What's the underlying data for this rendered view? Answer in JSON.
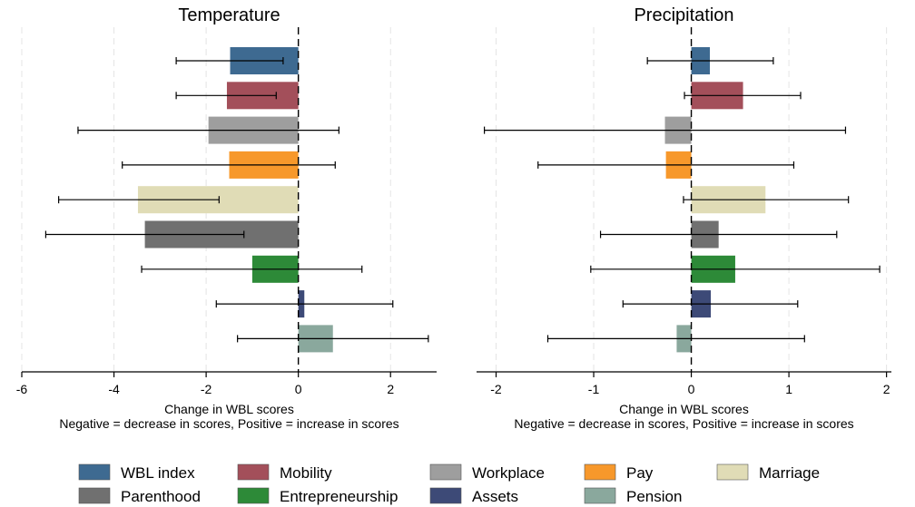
{
  "chart_data": [
    {
      "type": "bar",
      "orientation": "horizontal",
      "title": "Temperature",
      "xlabel": "Change in WBL scores",
      "xlabel_note": "Negative = decrease in scores, Positive = increase in scores",
      "xlim": [
        -6,
        3
      ],
      "xticks": [
        -6,
        -4,
        -2,
        0,
        2
      ],
      "xtick_labels": [
        "-6",
        "-4",
        "-2",
        "0",
        "2"
      ],
      "grid": "vertical dashed",
      "bars": [
        {
          "series": "WBL index",
          "value": -1.48,
          "ci": [
            -2.65,
            -0.33
          ]
        },
        {
          "series": "Mobility",
          "value": -1.55,
          "ci": [
            -2.65,
            -0.48
          ]
        },
        {
          "series": "Workplace",
          "value": -1.95,
          "ci": [
            -4.78,
            0.88
          ]
        },
        {
          "series": "Pay",
          "value": -1.5,
          "ci": [
            -3.82,
            0.8
          ]
        },
        {
          "series": "Marriage",
          "value": -3.48,
          "ci": [
            -5.2,
            -1.72
          ]
        },
        {
          "series": "Parenthood",
          "value": -3.33,
          "ci": [
            -5.48,
            -1.18
          ]
        },
        {
          "series": "Entrepreneurship",
          "value": -1.0,
          "ci": [
            -3.4,
            1.38
          ]
        },
        {
          "series": "Assets",
          "value": 0.13,
          "ci": [
            -1.78,
            2.05
          ]
        },
        {
          "series": "Pension",
          "value": 0.75,
          "ci": [
            -1.32,
            2.82
          ]
        }
      ]
    },
    {
      "type": "bar",
      "orientation": "horizontal",
      "title": "Precipitation",
      "xlabel": "Change in WBL scores",
      "xlabel_note": "Negative = decrease in scores, Positive = increase in scores",
      "xlim": [
        -2.2,
        2.05
      ],
      "xticks": [
        -2,
        -1,
        0,
        1,
        2
      ],
      "xtick_labels": [
        "-2",
        "-1",
        "0",
        "1",
        "2"
      ],
      "grid": "vertical dashed",
      "bars": [
        {
          "series": "WBL index",
          "value": 0.19,
          "ci": [
            -0.45,
            0.84
          ]
        },
        {
          "series": "Mobility",
          "value": 0.53,
          "ci": [
            -0.07,
            1.12
          ]
        },
        {
          "series": "Workplace",
          "value": -0.27,
          "ci": [
            -2.12,
            1.58
          ]
        },
        {
          "series": "Pay",
          "value": -0.26,
          "ci": [
            -1.57,
            1.05
          ]
        },
        {
          "series": "Marriage",
          "value": 0.76,
          "ci": [
            -0.08,
            1.61
          ]
        },
        {
          "series": "Parenthood",
          "value": 0.28,
          "ci": [
            -0.93,
            1.49
          ]
        },
        {
          "series": "Entrepreneurship",
          "value": 0.45,
          "ci": [
            -1.03,
            1.93
          ]
        },
        {
          "series": "Assets",
          "value": 0.2,
          "ci": [
            -0.7,
            1.09
          ]
        },
        {
          "series": "Pension",
          "value": -0.15,
          "ci": [
            -1.47,
            1.16
          ]
        }
      ]
    }
  ],
  "legend": {
    "placement": "bottom",
    "items": [
      {
        "label": "WBL index",
        "color": "#3e6a91"
      },
      {
        "label": "Mobility",
        "color": "#a34f5a"
      },
      {
        "label": "Workplace",
        "color": "#9e9e9e"
      },
      {
        "label": "Pay",
        "color": "#f7982b"
      },
      {
        "label": "Marriage",
        "color": "#e0dcb6"
      },
      {
        "label": "Parenthood",
        "color": "#707070"
      },
      {
        "label": "Entrepreneurship",
        "color": "#2d8a38"
      },
      {
        "label": "Assets",
        "color": "#3d4a77"
      },
      {
        "label": "Pension",
        "color": "#8aa89d"
      }
    ]
  }
}
